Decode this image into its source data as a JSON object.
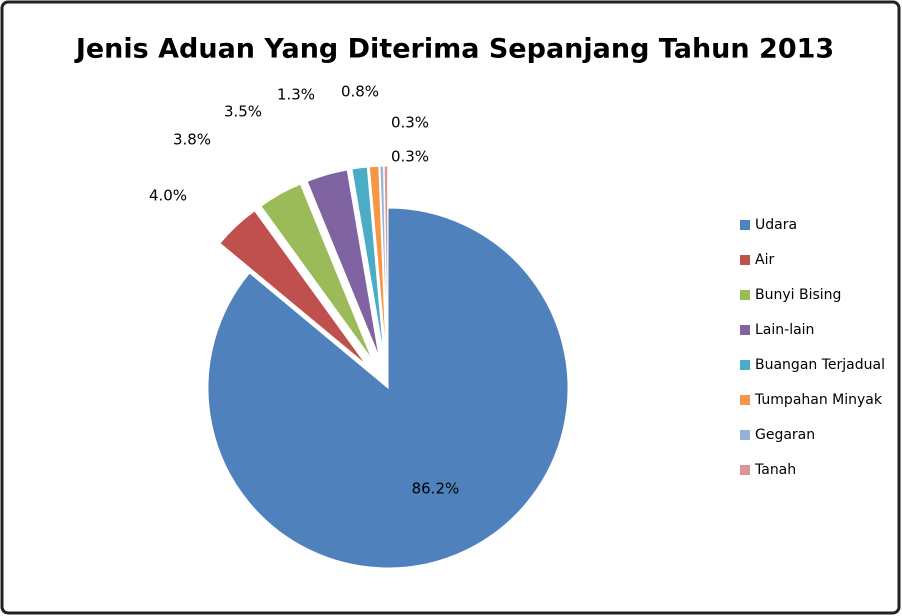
{
  "chart_data": {
    "type": "pie",
    "title": "Jenis Aduan Yang Diterima Sepanjang Tahun 2013",
    "categories": [
      "Udara",
      "Air",
      "Bunyi Bising",
      "Lain-lain",
      "Buangan Terjadual",
      "Tumpahan Minyak",
      "Gegaran",
      "Tanah"
    ],
    "values": [
      86.2,
      4.0,
      3.8,
      3.5,
      1.3,
      0.8,
      0.3,
      0.3
    ],
    "value_labels": [
      "86.2%",
      "4.0%",
      "3.8%",
      "3.5%",
      "1.3%",
      "0.8%",
      "0.3%",
      "0.3%"
    ],
    "colors": [
      "#4f81bd",
      "#c0504d",
      "#9bbb59",
      "#8064a2",
      "#4bacc6",
      "#f79646",
      "#95b3d7",
      "#d99694"
    ],
    "legend": "right"
  }
}
